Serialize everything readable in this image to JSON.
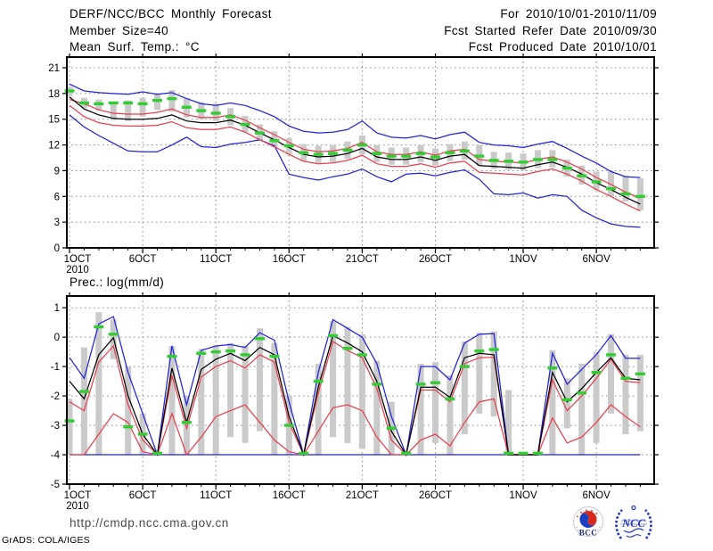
{
  "header": {
    "title": "DERF/NCC/BCC Monthly Forecast",
    "member_size": "Member Size=40",
    "period": "For 2010/10/01-2010/11/09",
    "refer_date": "Fcst Started Refer Date 2010/09/30",
    "produced_date": "Fcst Produced Date 2010/10/01"
  },
  "footer": {
    "url": "http://cmdp.ncc.cma.gov.cn",
    "credit": "GrADS: COLA/IGES",
    "bcc_label": "BCC",
    "ncc_label": "NCC"
  },
  "colors": {
    "frame": "#000000",
    "grid": "#8f8f8f",
    "blue_line": "#2222dd",
    "red_line": "#e8404e",
    "black_line": "#000000",
    "green_dash": "#33cc33",
    "gray_bar": "#cacaca",
    "bcc_red": "#d8281e",
    "bcc_blue": "#1a3fbf",
    "ncc_blue": "#2336c4"
  },
  "chart_data": [
    {
      "type": "line",
      "name": "mean-surface-temperature",
      "title": "Mean Surf. Temp.: °C",
      "x": {
        "n_days": 40,
        "tick_labels": [
          "1OCT",
          "6OCT",
          "11OCT",
          "16OCT",
          "21OCT",
          "26OCT",
          "1NOV",
          "6NOV"
        ],
        "tick_days": [
          1,
          6,
          11,
          16,
          21,
          26,
          32,
          37
        ],
        "year_label": "2010"
      },
      "y": {
        "ticks": [
          21,
          18,
          15,
          12,
          9,
          6,
          3,
          0
        ],
        "min": 0,
        "max": 22.25,
        "grid": true
      },
      "series": [
        {
          "name": "ensemble-max",
          "color": "#2222dd",
          "values": [
            19.1,
            18.3,
            18.1,
            18.0,
            17.9,
            18.2,
            17.9,
            18.1,
            17.4,
            16.8,
            16.6,
            16.9,
            16.6,
            16.0,
            15.3,
            14.2,
            13.6,
            13.4,
            13.5,
            13.8,
            14.8,
            13.4,
            12.9,
            12.8,
            13.1,
            12.7,
            13.2,
            13.5,
            12.3,
            12.0,
            11.9,
            11.7,
            12.1,
            12.4,
            11.6,
            10.7,
            9.9,
            8.9,
            8.3,
            8.2
          ]
        },
        {
          "name": "ensemble-upper",
          "color": "#e8404e",
          "values": [
            17.3,
            16.8,
            16.1,
            15.7,
            15.6,
            15.6,
            15.8,
            16.2,
            15.5,
            15.2,
            15.2,
            15.5,
            14.9,
            14.0,
            13.2,
            12.3,
            11.5,
            11.2,
            11.3,
            11.6,
            12.3,
            11.2,
            10.9,
            10.9,
            11.2,
            10.8,
            11.3,
            11.5,
            10.3,
            10.1,
            10.0,
            9.9,
            10.3,
            10.6,
            10.0,
            9.2,
            8.2,
            7.4,
            6.5,
            5.8
          ]
        },
        {
          "name": "ensemble-mean",
          "color": "#000000",
          "values": [
            17.6,
            16.2,
            15.5,
            15.1,
            15.0,
            15.0,
            15.1,
            15.5,
            14.8,
            14.6,
            14.6,
            14.9,
            14.3,
            13.4,
            12.6,
            11.7,
            10.9,
            10.6,
            10.7,
            11.0,
            11.6,
            10.6,
            10.3,
            10.3,
            10.6,
            10.2,
            10.7,
            10.9,
            9.6,
            9.5,
            9.4,
            9.3,
            9.7,
            10.0,
            9.4,
            8.6,
            7.6,
            6.8,
            5.9,
            5.1
          ]
        },
        {
          "name": "ensemble-lower",
          "color": "#e8404e",
          "values": [
            16.6,
            15.3,
            14.6,
            14.3,
            14.2,
            14.2,
            14.3,
            14.7,
            14.0,
            13.8,
            13.8,
            14.1,
            13.5,
            12.6,
            11.8,
            10.9,
            10.1,
            9.8,
            9.9,
            10.2,
            10.8,
            9.8,
            9.5,
            9.5,
            9.8,
            9.4,
            9.9,
            10.1,
            8.8,
            8.7,
            8.6,
            8.5,
            8.9,
            9.2,
            8.6,
            7.8,
            6.8,
            6.0,
            5.1,
            4.3
          ]
        },
        {
          "name": "ensemble-min",
          "color": "#2222dd",
          "values": [
            15.5,
            14.1,
            13.1,
            12.2,
            11.3,
            11.2,
            11.2,
            12.0,
            12.9,
            11.8,
            11.7,
            12.1,
            12.3,
            12.6,
            11.9,
            8.6,
            8.2,
            7.9,
            8.3,
            8.6,
            9.2,
            8.3,
            7.7,
            8.6,
            8.7,
            8.4,
            8.8,
            9.1,
            8.0,
            6.3,
            6.2,
            6.4,
            5.8,
            6.2,
            6.0,
            4.4,
            3.5,
            2.8,
            2.5,
            2.4
          ]
        }
      ],
      "daily_marks": {
        "name": "green-dash-marks",
        "color": "#33cc33",
        "values": [
          18.3,
          16.9,
          16.8,
          16.9,
          16.9,
          16.8,
          17.2,
          17.4,
          16.4,
          16.0,
          15.7,
          15.3,
          14.4,
          13.4,
          12.5,
          11.9,
          11.1,
          10.9,
          11.0,
          11.4,
          12.0,
          11.0,
          10.7,
          10.7,
          11.0,
          10.6,
          11.1,
          11.3,
          10.7,
          10.2,
          10.1,
          10.0,
          10.3,
          10.3,
          9.3,
          8.4,
          7.7,
          6.9,
          6.3,
          6.0
        ]
      },
      "spread_bars": {
        "color": "#cacaca",
        "low": [
          17.7,
          16.3,
          16.0,
          14.9,
          14.8,
          15.3,
          16.1,
          15.9,
          15.2,
          15.0,
          14.8,
          14.3,
          13.5,
          12.5,
          11.7,
          10.9,
          10.1,
          9.9,
          10.0,
          10.4,
          10.9,
          10.0,
          9.7,
          9.7,
          10.0,
          9.6,
          10.1,
          10.3,
          9.6,
          9.2,
          9.1,
          9.0,
          9.3,
          9.4,
          8.3,
          7.4,
          6.7,
          6.0,
          5.4,
          4.4
        ],
        "high": [
          18.8,
          17.5,
          17.3,
          17.0,
          17.2,
          17.5,
          18.0,
          18.4,
          17.4,
          17.0,
          16.8,
          16.3,
          15.4,
          14.4,
          13.6,
          12.8,
          12.1,
          11.9,
          12.0,
          12.4,
          13.1,
          12.0,
          11.7,
          11.7,
          12.0,
          11.6,
          12.1,
          12.4,
          12.0,
          11.2,
          11.1,
          11.0,
          11.4,
          11.4,
          10.3,
          9.6,
          8.9,
          8.9,
          8.4,
          8.1
        ]
      }
    },
    {
      "type": "line",
      "name": "precipitation",
      "title": "Prec.: log(mm/d)",
      "x": {
        "n_days": 40,
        "tick_labels": [
          "1OCT",
          "6OCT",
          "11OCT",
          "16OCT",
          "21OCT",
          "26OCT",
          "1NOV",
          "6NOV"
        ],
        "tick_days": [
          1,
          6,
          11,
          16,
          21,
          26,
          32,
          37
        ],
        "year_label": "2010"
      },
      "y": {
        "ticks": [
          1,
          0,
          -1,
          -2,
          -3,
          -4,
          -5
        ],
        "min": -5.0,
        "max": 1.4,
        "grid": true
      },
      "series": [
        {
          "name": "ensemble-max",
          "color": "#2222dd",
          "values": [
            -0.7,
            -1.4,
            0.45,
            0.7,
            -1.2,
            -2.6,
            -4.0,
            -0.3,
            -2.3,
            -0.45,
            -0.3,
            -0.25,
            -0.35,
            0.15,
            -0.1,
            -2.2,
            -4.0,
            -1.2,
            0.6,
            0.3,
            0.0,
            -0.9,
            -2.7,
            -4.0,
            -1.0,
            -1.0,
            -1.45,
            -0.2,
            0.1,
            0.12,
            -4.0,
            -4.0,
            -4.0,
            -0.55,
            -1.6,
            -1.1,
            -0.6,
            0.05,
            -0.72,
            -0.72
          ]
        },
        {
          "name": "ensemble-upper",
          "color": "#e8404e",
          "values": [
            -2.2,
            -2.5,
            -0.85,
            -0.3,
            -2.3,
            -3.5,
            -4.0,
            -1.3,
            -3.1,
            -1.35,
            -1.0,
            -0.8,
            -1.05,
            -0.6,
            -0.85,
            -2.9,
            -4.0,
            -1.9,
            -0.15,
            -0.45,
            -0.7,
            -1.75,
            -3.5,
            -4.0,
            -1.8,
            -1.8,
            -2.2,
            -0.9,
            -0.7,
            -0.68,
            -4.0,
            -4.0,
            -4.0,
            -1.45,
            -2.5,
            -2.0,
            -1.4,
            -0.75,
            -1.5,
            -1.55
          ]
        },
        {
          "name": "ensemble-mean",
          "color": "#000000",
          "values": [
            -1.5,
            -2.1,
            -0.6,
            -0.02,
            -2.0,
            -3.3,
            -4.0,
            -1.05,
            -2.9,
            -1.1,
            -0.75,
            -0.55,
            -0.8,
            -0.35,
            -0.6,
            -2.7,
            -4.0,
            -1.7,
            0.05,
            -0.2,
            -0.5,
            -1.5,
            -3.2,
            -4.0,
            -1.7,
            -1.7,
            -2.05,
            -0.7,
            -0.55,
            -0.6,
            -4.0,
            -4.0,
            -4.0,
            -1.2,
            -2.2,
            -1.75,
            -1.2,
            -0.7,
            -1.4,
            -1.45
          ]
        },
        {
          "name": "ensemble-lower",
          "color": "#e8404e",
          "values": [
            -4.0,
            -4.0,
            -3.3,
            -2.6,
            -2.9,
            -3.9,
            -4.0,
            -2.6,
            -4.0,
            -3.4,
            -2.7,
            -2.5,
            -2.3,
            -2.9,
            -3.5,
            -3.9,
            -4.0,
            -3.2,
            -2.4,
            -2.3,
            -2.5,
            -3.4,
            -4.0,
            -4.0,
            -3.5,
            -3.3,
            -3.7,
            -2.9,
            -2.2,
            -2.1,
            -4.0,
            -4.0,
            -4.0,
            -2.75,
            -3.6,
            -3.4,
            -2.9,
            -2.3,
            -2.7,
            -3.05
          ]
        },
        {
          "name": "ensemble-min",
          "color": "#2222dd",
          "values": [
            -4.0,
            -4.0,
            -4.0,
            -4.0,
            -4.0,
            -4.0,
            -4.0,
            -4.0,
            -4.0,
            -4.0,
            -4.0,
            -4.0,
            -4.0,
            -4.0,
            -4.0,
            -4.0,
            -4.0,
            -4.0,
            -4.0,
            -4.0,
            -4.0,
            -4.0,
            -4.0,
            -4.0,
            -4.0,
            -4.0,
            -4.0,
            -4.0,
            -4.0,
            -4.0,
            -4.0,
            -4.0,
            -4.0,
            -4.0,
            -4.0,
            -4.0,
            -4.0,
            -4.0,
            -4.0,
            -4.0
          ]
        }
      ],
      "daily_marks": {
        "name": "green-dash-marks",
        "color": "#33cc33",
        "values": [
          -2.85,
          -1.85,
          0.35,
          0.1,
          -3.05,
          -3.3,
          -3.95,
          -0.65,
          -2.9,
          -0.55,
          -0.5,
          -0.47,
          -0.6,
          -0.05,
          -0.65,
          -3.0,
          -3.95,
          -1.5,
          0.05,
          -0.38,
          -0.6,
          -1.6,
          -3.1,
          -3.95,
          -1.6,
          -1.55,
          -2.1,
          -1.0,
          -0.47,
          -0.42,
          -3.95,
          -3.95,
          -3.95,
          -1.05,
          -2.13,
          -1.9,
          -1.2,
          -0.6,
          -1.4,
          -1.25
        ]
      },
      "spread_bars": {
        "color": "#cacaca",
        "low": [
          -4,
          -4,
          -4,
          -0.75,
          -4,
          -4,
          -4,
          -4,
          -4,
          -4,
          -4,
          -3.4,
          -3.6,
          -3.2,
          -4,
          -4,
          -4,
          -4,
          -3.4,
          -3.6,
          -3.8,
          -4,
          -4,
          -4,
          -4,
          -3.6,
          -4,
          -3.3,
          -2.6,
          -2.7,
          -4,
          -4,
          -4,
          -4,
          -3.1,
          -4,
          -3.6,
          -2.6,
          -3.3,
          -3.2
        ],
        "high": [
          -2.1,
          -0.35,
          0.85,
          0.6,
          -1.0,
          -2.6,
          -4,
          -0.3,
          -2.0,
          -0.4,
          -0.3,
          -0.2,
          -0.3,
          0.3,
          -0.2,
          -2.0,
          -4,
          -0.9,
          0.55,
          0.35,
          0.1,
          -0.8,
          -2.2,
          -4,
          -0.9,
          -0.85,
          -1.3,
          -0.15,
          0.15,
          0.2,
          -1.8,
          -4,
          -4,
          -0.45,
          -1.4,
          -0.9,
          -0.5,
          0.1,
          -0.6,
          -0.6
        ]
      }
    }
  ]
}
